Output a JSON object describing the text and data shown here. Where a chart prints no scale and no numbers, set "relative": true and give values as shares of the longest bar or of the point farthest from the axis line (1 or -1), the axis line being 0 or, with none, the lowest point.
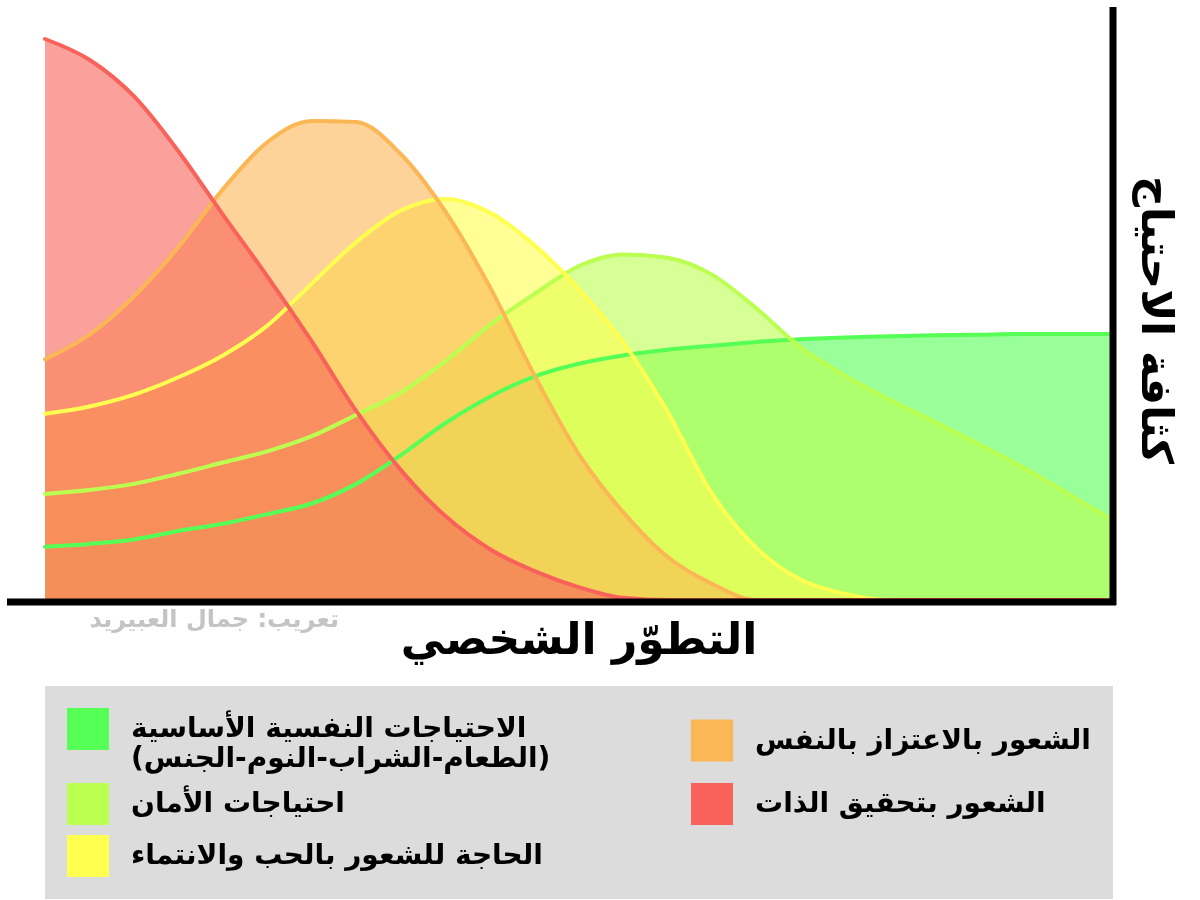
{
  "chart_data": {
    "type": "area",
    "relative": true,
    "xlabel": "التطوّر الشخصي",
    "ylabel": "كثافة الاحتياج",
    "legend": "bottom",
    "line_style": "solid",
    "annotations": [
      "تعريب: جمال العبيريد"
    ],
    "categories": [
      null,
      null,
      null,
      null,
      null,
      null,
      null,
      null,
      null,
      null,
      null,
      null,
      null,
      null,
      null,
      null,
      null,
      null,
      null,
      null,
      null,
      null,
      null,
      null,
      null
    ],
    "series": [
      {
        "name": "الاحتياجات النفسية الأساسية\n(الطعام-الشراب-النوم-الجنس)",
        "color": "#55ff55",
        "values": [
          0.095,
          0.1,
          0.108,
          0.123,
          0.136,
          0.153,
          0.172,
          0.207,
          0.258,
          0.315,
          0.362,
          0.398,
          0.421,
          0.436,
          0.446,
          0.453,
          0.46,
          0.465,
          0.468,
          0.47,
          0.472,
          0.473,
          0.474,
          0.474,
          0.474
        ]
      },
      {
        "name": "احتياجات الأمان",
        "color": "#bbff50",
        "values": [
          0.189,
          0.196,
          0.207,
          0.225,
          0.245,
          0.265,
          0.292,
          0.33,
          0.37,
          0.425,
          0.49,
          0.545,
          0.595,
          0.616,
          0.61,
          0.58,
          0.52,
          0.45,
          0.4,
          0.357,
          0.318,
          0.278,
          0.236,
          0.19,
          0.143
        ]
      },
      {
        "name": "الحاجة للشعور بالحب والانتماء",
        "color": "#ffff50",
        "values": [
          0.332,
          0.345,
          0.366,
          0.397,
          0.436,
          0.489,
          0.564,
          0.638,
          0.694,
          0.715,
          0.691,
          0.633,
          0.555,
          0.46,
          0.336,
          0.19,
          0.093,
          0.036,
          0.011,
          0,
          0,
          0,
          0,
          0,
          0
        ]
      },
      {
        "name": "الشعور بالاعتزاز بالنفس",
        "color": "#fbb655",
        "values": [
          0.429,
          0.473,
          0.541,
          0.629,
          0.732,
          0.816,
          0.854,
          0.852,
          0.795,
          0.693,
          0.559,
          0.402,
          0.261,
          0.157,
          0.077,
          0.029,
          0,
          0,
          0,
          0,
          0,
          0,
          0,
          0,
          0
        ]
      },
      {
        "name": "الشعور بتحقيق الذات",
        "color": "#f8625a",
        "values": [
          1,
          0.963,
          0.898,
          0.8,
          0.687,
          0.577,
          0.461,
          0.337,
          0.232,
          0.15,
          0.091,
          0.052,
          0.023,
          0.004,
          0,
          0,
          0,
          0,
          0,
          0,
          0,
          0,
          0,
          0,
          0
        ]
      }
    ]
  }
}
